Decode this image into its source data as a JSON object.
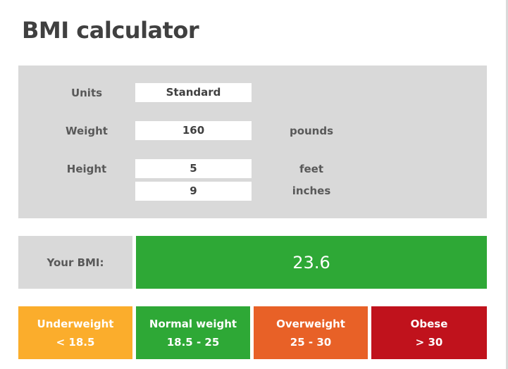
{
  "title": "BMI calculator",
  "inputs": {
    "units": {
      "label": "Units",
      "value": "Standard"
    },
    "weight": {
      "label": "Weight",
      "value": "160",
      "unit": "pounds"
    },
    "height": {
      "label": "Height",
      "feet_value": "5",
      "feet_unit": "feet",
      "inches_value": "9",
      "inches_unit": "inches"
    }
  },
  "result": {
    "label": "Your BMI:",
    "value": "23.6",
    "color": "#2ea836"
  },
  "categories": [
    {
      "name": "Underweight",
      "range": "< 18.5",
      "color": "#fbad2c"
    },
    {
      "name": "Normal weight",
      "range": "18.5 - 25",
      "color": "#2ea836"
    },
    {
      "name": "Overweight",
      "range": "25 - 30",
      "color": "#e86127"
    },
    {
      "name": "Obese",
      "range": "> 30",
      "color": "#c0121c"
    }
  ]
}
